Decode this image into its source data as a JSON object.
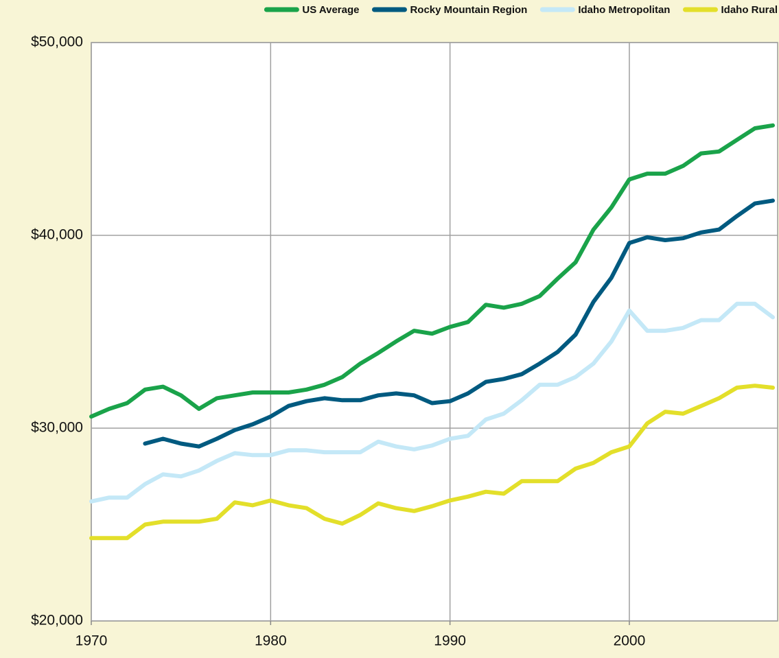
{
  "chart_data": {
    "type": "line",
    "x": [
      1970,
      1971,
      1972,
      1973,
      1974,
      1975,
      1976,
      1977,
      1978,
      1979,
      1980,
      1981,
      1982,
      1983,
      1984,
      1985,
      1986,
      1987,
      1988,
      1989,
      1990,
      1991,
      1992,
      1993,
      1994,
      1995,
      1996,
      1997,
      1998,
      1999,
      2000,
      2001,
      2002,
      2003,
      2004,
      2005,
      2006,
      2007,
      2008
    ],
    "series": [
      {
        "name": "US Average",
        "color": "#1aa34a",
        "values": [
          30600,
          31000,
          31300,
          32000,
          32150,
          31700,
          31000,
          31550,
          31700,
          31850,
          31850,
          31850,
          32000,
          32250,
          32650,
          33350,
          33900,
          34500,
          35050,
          34900,
          35250,
          35500,
          36400,
          36250,
          36450,
          36850,
          37750,
          38600,
          40300,
          41450,
          42900,
          43200,
          43200,
          43600,
          44250,
          44350,
          44950,
          45550,
          45700
        ]
      },
      {
        "name": "Rocky Mountain Region",
        "color": "#005a80",
        "values": [
          null,
          null,
          null,
          29200,
          29450,
          29200,
          29050,
          29450,
          29900,
          30200,
          30600,
          31150,
          31400,
          31550,
          31450,
          31450,
          31700,
          31800,
          31700,
          31300,
          31400,
          31800,
          32400,
          32550,
          32800,
          33350,
          33950,
          34850,
          36550,
          37800,
          39600,
          39900,
          39750,
          39850,
          40150,
          40300,
          41000,
          41650,
          41800
        ]
      },
      {
        "name": "Idaho Metropolitan",
        "color": "#c4e8f7",
        "values": [
          26200,
          26400,
          26400,
          27100,
          27600,
          27500,
          27800,
          28300,
          28700,
          28600,
          28600,
          28850,
          28850,
          28750,
          28750,
          28750,
          29300,
          29050,
          28900,
          29100,
          29450,
          29600,
          30450,
          30750,
          31450,
          32250,
          32250,
          32650,
          33350,
          34500,
          36100,
          35050,
          35050,
          35200,
          35600,
          35600,
          36450,
          36450,
          35750
        ]
      },
      {
        "name": "Idaho Rural",
        "color": "#e3df2a",
        "values": [
          24300,
          24300,
          24300,
          25000,
          25150,
          25150,
          25150,
          25300,
          26150,
          26000,
          26250,
          26000,
          25850,
          25300,
          25050,
          25500,
          26100,
          25850,
          25700,
          25950,
          26250,
          26450,
          26700,
          26600,
          27250,
          27250,
          27250,
          27900,
          28200,
          28750,
          29050,
          30250,
          30850,
          30750,
          31150,
          31550,
          32100,
          32200,
          32100
        ]
      }
    ],
    "xlim": [
      1970,
      2008
    ],
    "xticks": [
      1970,
      1980,
      1990,
      2000
    ],
    "ylim": [
      20000,
      50000
    ],
    "yticks": [
      {
        "value": 20000,
        "label": "$20,000"
      },
      {
        "value": 30000,
        "label": "$30,000"
      },
      {
        "value": 40000,
        "label": "$40,000"
      },
      {
        "value": 50000,
        "label": "$50,000"
      }
    ],
    "grid": true,
    "legend": "top"
  }
}
